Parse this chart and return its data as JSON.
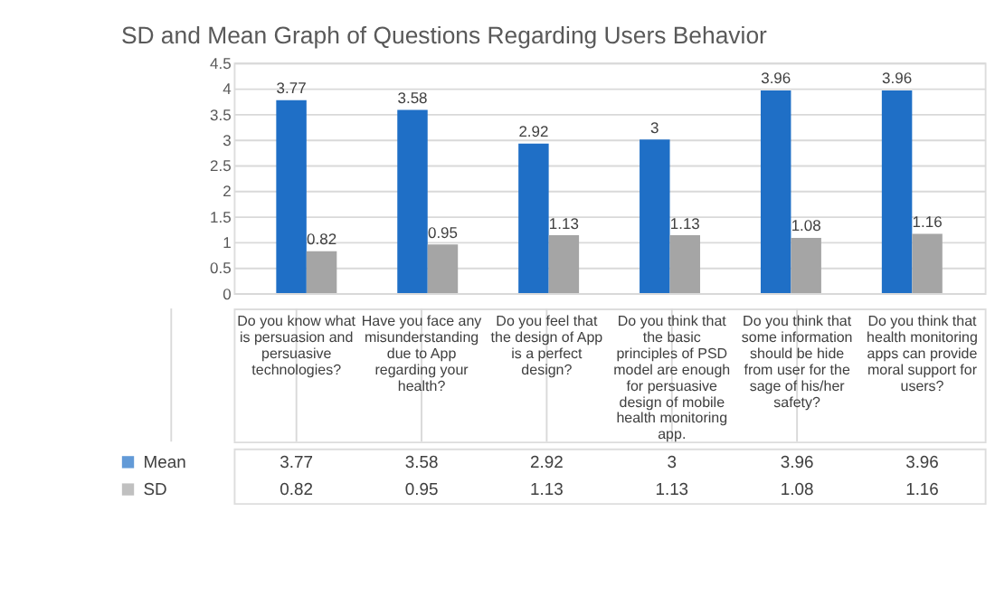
{
  "chart_data": {
    "type": "bar",
    "title": "SD and Mean Graph of Questions Regarding Users Behavior",
    "categories": [
      "Do you know what is persuasion and persuasive technologies?",
      "Have you face any misunderstanding due to App regarding your health?",
      "Do you feel that the design of App is a perfect design?",
      "Do you think that the basic principles of PSD model are enough for persuasive design of mobile health monitoring app.",
      "Do you think that some information should be hide from user for the sage of his/her safety?",
      "Do you think that health monitoring apps can provide moral support for users?"
    ],
    "series": [
      {
        "name": "Mean",
        "color": "#1f6fc6",
        "values": [
          3.77,
          3.58,
          2.92,
          3,
          3.96,
          3.96
        ],
        "value_labels": [
          "3.77",
          "3.58",
          "2.92",
          "3",
          "3.96",
          "3.96"
        ]
      },
      {
        "name": "SD",
        "color": "#a5a5a5",
        "values": [
          0.82,
          0.95,
          1.13,
          1.13,
          1.08,
          1.16
        ],
        "value_labels": [
          "0.82",
          "0.95",
          "1.13",
          "1.13",
          "1.08",
          "1.16"
        ]
      }
    ],
    "ylim": [
      0,
      4.5
    ],
    "yticks": [
      0,
      0.5,
      1,
      1.5,
      2,
      2.5,
      3,
      3.5,
      4,
      4.5
    ],
    "grid": "y",
    "data_labels": true,
    "legend": "bottom"
  }
}
